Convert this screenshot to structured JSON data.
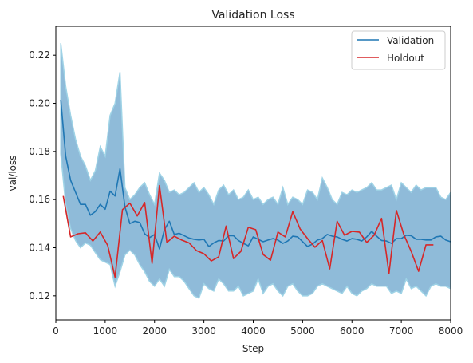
{
  "chart_data": {
    "type": "line",
    "title": "Validation Loss",
    "xlabel": "Step",
    "ylabel": "val/loss",
    "xlim": [
      0,
      8000
    ],
    "ylim": [
      0.11,
      0.232
    ],
    "xticks": [
      0,
      1000,
      2000,
      3000,
      4000,
      5000,
      6000,
      7000,
      8000
    ],
    "yticks": [
      0.12,
      0.14,
      0.16,
      0.18,
      0.2,
      0.22
    ],
    "ytick_labels": [
      "0.12",
      "0.14",
      "0.16",
      "0.18",
      "0.20",
      "0.22"
    ],
    "legend_position": "top-right",
    "grid": false,
    "series": [
      {
        "name": "Validation",
        "color": "#1f77b4",
        "x": [
          100,
          200,
          300,
          400,
          500,
          600,
          700,
          800,
          900,
          1000,
          1100,
          1200,
          1300,
          1400,
          1500,
          1600,
          1700,
          1800,
          1900,
          2000,
          2100,
          2200,
          2300,
          2400,
          2500,
          2600,
          2700,
          2800,
          2900,
          3000,
          3100,
          3200,
          3300,
          3400,
          3500,
          3600,
          3700,
          3800,
          3900,
          4000,
          4100,
          4200,
          4300,
          4400,
          4500,
          4600,
          4700,
          4800,
          4900,
          5000,
          5100,
          5200,
          5300,
          5400,
          5500,
          5600,
          5700,
          5800,
          5900,
          6000,
          6100,
          6200,
          6300,
          6400,
          6500,
          6600,
          6700,
          6800,
          6900,
          7000,
          7100,
          7200,
          7300,
          7400,
          7500,
          7600,
          7700,
          7800,
          7900,
          8000
        ],
        "values": [
          0.2015,
          0.178,
          0.168,
          0.163,
          0.158,
          0.158,
          0.1535,
          0.155,
          0.158,
          0.156,
          0.1635,
          0.1615,
          0.1728,
          0.157,
          0.15,
          0.151,
          0.1505,
          0.1458,
          0.1442,
          0.1455,
          0.1395,
          0.1475,
          0.151,
          0.1455,
          0.146,
          0.145,
          0.144,
          0.1435,
          0.1432,
          0.1435,
          0.1405,
          0.142,
          0.143,
          0.1428,
          0.145,
          0.145,
          0.143,
          0.1418,
          0.1408,
          0.1445,
          0.1435,
          0.1425,
          0.1432,
          0.1438,
          0.1432,
          0.1418,
          0.1428,
          0.1448,
          0.1445,
          0.1425,
          0.1405,
          0.1415,
          0.1432,
          0.1438,
          0.1455,
          0.1448,
          0.1445,
          0.1435,
          0.1428,
          0.1438,
          0.1435,
          0.1428,
          0.1445,
          0.1468,
          0.1448,
          0.143,
          0.1428,
          0.1418,
          0.1438,
          0.1438,
          0.1452,
          0.145,
          0.1435,
          0.1435,
          0.1432,
          0.1432,
          0.1445,
          0.1448,
          0.1432,
          0.1425
        ]
      },
      {
        "name": "Holdout",
        "color": "#d62728",
        "x": [
          150,
          300,
          450,
          600,
          750,
          900,
          1050,
          1200,
          1350,
          1500,
          1650,
          1800,
          1950,
          2100,
          2250,
          2400,
          2550,
          2700,
          2850,
          3000,
          3150,
          3300,
          3450,
          3600,
          3750,
          3900,
          4050,
          4200,
          4350,
          4500,
          4650,
          4800,
          4950,
          5100,
          5250,
          5400,
          5550,
          5700,
          5850,
          6000,
          6150,
          6300,
          6450,
          6600,
          6750,
          6900,
          7050,
          7200,
          7350,
          7500,
          7650
        ],
        "values": [
          0.1615,
          0.1445,
          0.1458,
          0.1462,
          0.1428,
          0.1465,
          0.141,
          0.1278,
          0.1558,
          0.1585,
          0.1532,
          0.1588,
          0.1335,
          0.1658,
          0.1422,
          0.1448,
          0.1432,
          0.142,
          0.1388,
          0.1375,
          0.1345,
          0.1362,
          0.149,
          0.1355,
          0.1385,
          0.1485,
          0.1475,
          0.1372,
          0.1348,
          0.1465,
          0.1445,
          0.155,
          0.1478,
          0.1438,
          0.1402,
          0.143,
          0.1312,
          0.151,
          0.1452,
          0.1468,
          0.1465,
          0.1422,
          0.1452,
          0.1522,
          0.1292,
          0.1555,
          0.1455,
          0.1385,
          0.1302,
          0.1412,
          0.1412
        ]
      }
    ],
    "band": {
      "color": "#1f77b4",
      "edge_color": "#9fd3e6",
      "x": [
        100,
        200,
        300,
        400,
        500,
        600,
        700,
        800,
        900,
        1000,
        1100,
        1200,
        1300,
        1400,
        1500,
        1600,
        1700,
        1800,
        1900,
        2000,
        2100,
        2200,
        2300,
        2400,
        2500,
        2600,
        2700,
        2800,
        2900,
        3000,
        3100,
        3200,
        3300,
        3400,
        3500,
        3600,
        3700,
        3800,
        3900,
        4000,
        4100,
        4200,
        4300,
        4400,
        4500,
        4600,
        4700,
        4800,
        4900,
        5000,
        5100,
        5200,
        5300,
        5400,
        5500,
        5600,
        5700,
        5800,
        5900,
        6000,
        6100,
        6200,
        6300,
        6400,
        6500,
        6600,
        6700,
        6800,
        6900,
        7000,
        7100,
        7200,
        7300,
        7400,
        7500,
        7600,
        7700,
        7800,
        7900,
        8000
      ],
      "upper": [
        0.225,
        0.207,
        0.195,
        0.185,
        0.178,
        0.174,
        0.168,
        0.172,
        0.182,
        0.178,
        0.195,
        0.2,
        0.213,
        0.165,
        0.16,
        0.162,
        0.165,
        0.167,
        0.162,
        0.158,
        0.171,
        0.168,
        0.163,
        0.164,
        0.162,
        0.163,
        0.165,
        0.167,
        0.163,
        0.165,
        0.162,
        0.158,
        0.164,
        0.166,
        0.162,
        0.164,
        0.16,
        0.161,
        0.164,
        0.16,
        0.161,
        0.158,
        0.16,
        0.161,
        0.158,
        0.165,
        0.158,
        0.161,
        0.16,
        0.158,
        0.164,
        0.163,
        0.16,
        0.169,
        0.165,
        0.16,
        0.158,
        0.163,
        0.162,
        0.164,
        0.163,
        0.164,
        0.165,
        0.167,
        0.164,
        0.164,
        0.165,
        0.166,
        0.16,
        0.167,
        0.165,
        0.163,
        0.166,
        0.164,
        0.165,
        0.165,
        0.165,
        0.161,
        0.16,
        0.163
      ],
      "lower": [
        0.179,
        0.158,
        0.148,
        0.143,
        0.14,
        0.142,
        0.141,
        0.138,
        0.135,
        0.134,
        0.133,
        0.124,
        0.13,
        0.137,
        0.139,
        0.137,
        0.133,
        0.13,
        0.126,
        0.124,
        0.127,
        0.124,
        0.131,
        0.128,
        0.128,
        0.126,
        0.123,
        0.12,
        0.119,
        0.125,
        0.123,
        0.122,
        0.127,
        0.125,
        0.122,
        0.122,
        0.124,
        0.12,
        0.121,
        0.122,
        0.127,
        0.121,
        0.124,
        0.125,
        0.122,
        0.12,
        0.124,
        0.125,
        0.122,
        0.12,
        0.12,
        0.121,
        0.124,
        0.125,
        0.124,
        0.123,
        0.122,
        0.121,
        0.124,
        0.121,
        0.12,
        0.122,
        0.123,
        0.125,
        0.124,
        0.124,
        0.124,
        0.121,
        0.122,
        0.121,
        0.127,
        0.123,
        0.124,
        0.122,
        0.12,
        0.124,
        0.125,
        0.124,
        0.124,
        0.123
      ]
    }
  }
}
